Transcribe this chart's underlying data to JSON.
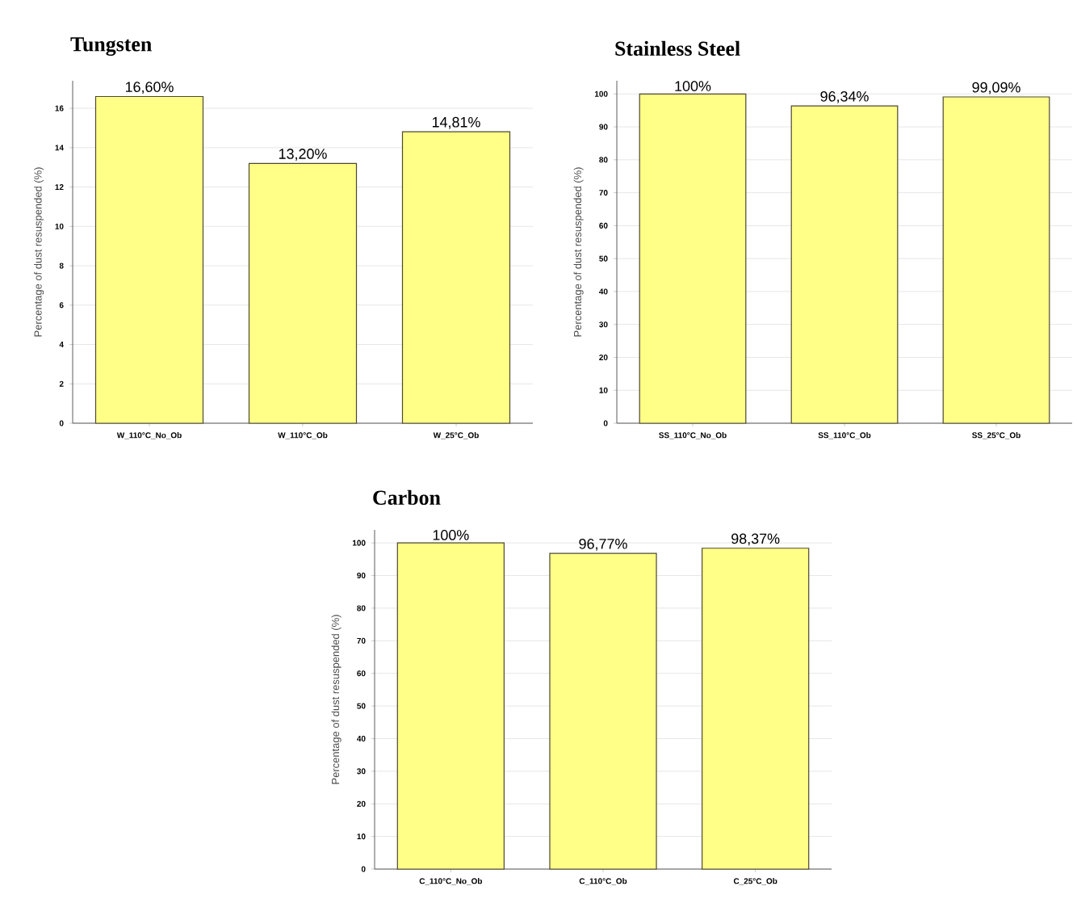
{
  "chart_data": [
    {
      "type": "bar",
      "title": "Tungsten",
      "ylabel": "Percentage of dust resuspended (%)",
      "categories": [
        "W_110°C_No_Ob",
        "W_110°C_Ob",
        "W_25°C_Ob"
      ],
      "values": [
        16.6,
        13.2,
        14.81
      ],
      "value_labels": [
        "16,60%",
        "13,20%",
        "14,81%"
      ],
      "color": "#ffff88",
      "ylim": [
        0,
        17.4
      ],
      "yticks": [
        0,
        2,
        4,
        6,
        8,
        10,
        12,
        14,
        16
      ],
      "grid": "y"
    },
    {
      "type": "bar",
      "title": "Stainless Steel",
      "ylabel": "Percentage of dust resuspended (%)",
      "categories": [
        "SS_110°C_No_Ob",
        "SS_110°C_Ob",
        "SS_25°C_Ob"
      ],
      "values": [
        100,
        96.34,
        99.09
      ],
      "value_labels": [
        "100%",
        "96,34%",
        "99,09%"
      ],
      "color": "#ffff88",
      "ylim": [
        0,
        104
      ],
      "yticks": [
        0,
        10,
        20,
        30,
        40,
        50,
        60,
        70,
        80,
        90,
        100
      ],
      "grid": "y"
    },
    {
      "type": "bar",
      "title": "Carbon",
      "ylabel": "Percentage of dust resuspended (%)",
      "categories": [
        "C_110°C_No_Ob",
        "C_110°C_Ob",
        "C_25°C_Ob"
      ],
      "values": [
        100,
        96.77,
        98.37
      ],
      "value_labels": [
        "100%",
        "96,77%",
        "98,37%"
      ],
      "color": "#ffff88",
      "ylim": [
        0,
        104
      ],
      "yticks": [
        0,
        10,
        20,
        30,
        40,
        50,
        60,
        70,
        80,
        90,
        100
      ],
      "grid": "y"
    }
  ]
}
